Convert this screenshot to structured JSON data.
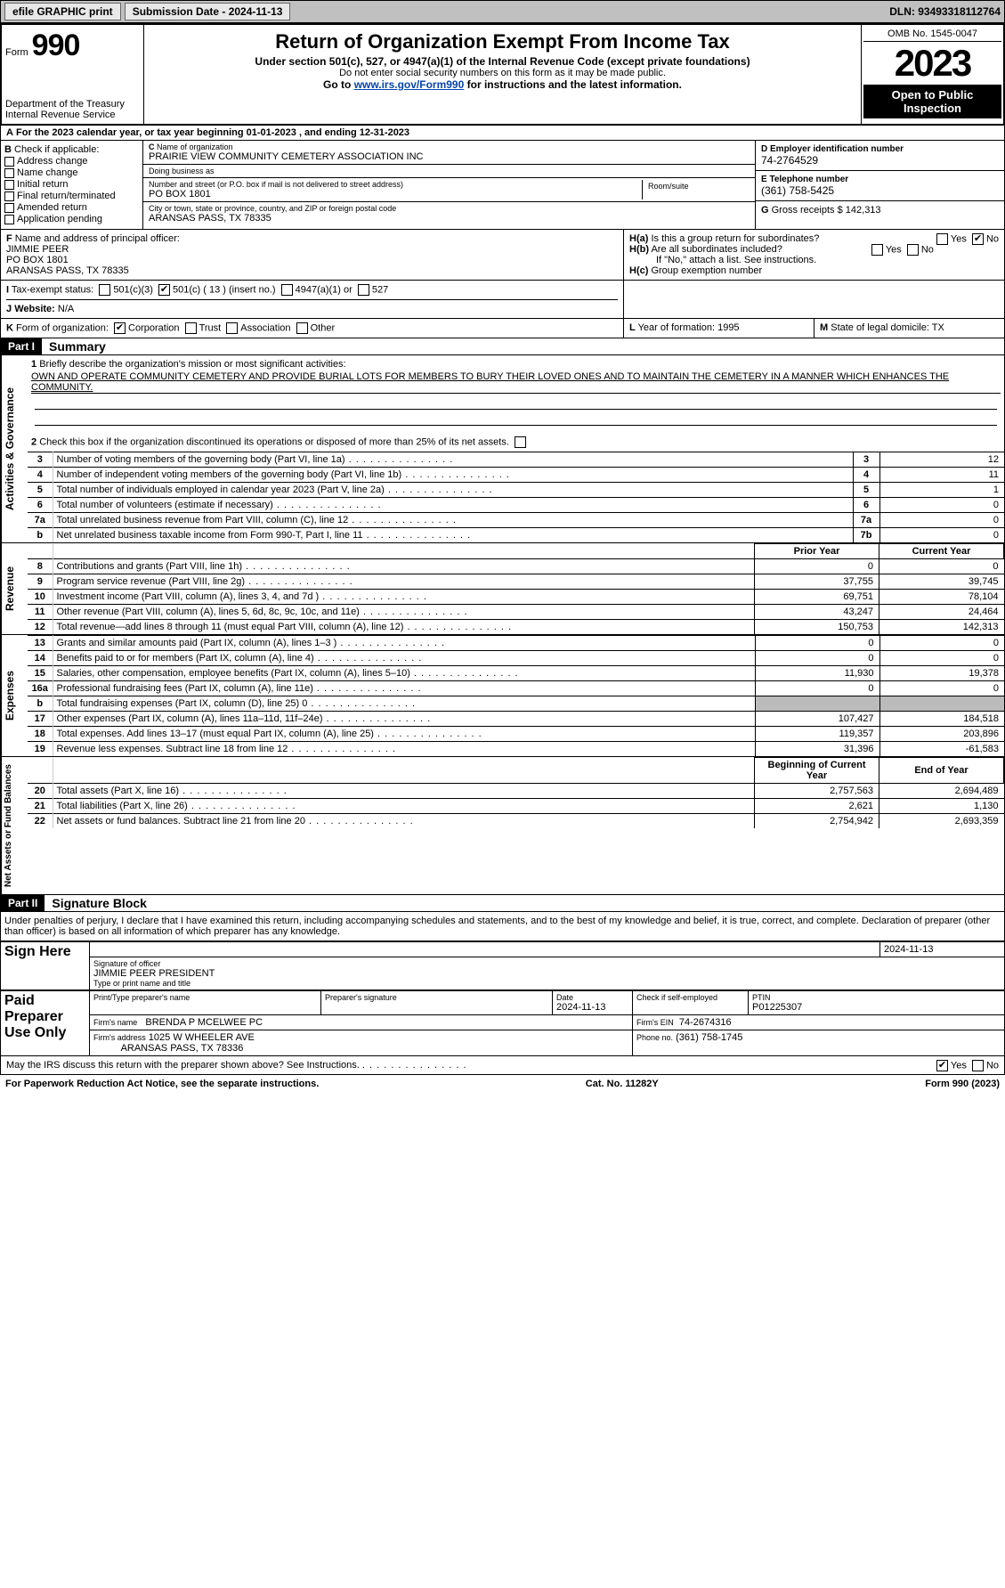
{
  "topbar": {
    "efile": "efile GRAPHIC print",
    "sub_date": "Submission Date - 2024-11-13",
    "dln": "DLN: 93493318112764"
  },
  "header": {
    "form_label": "Form",
    "form_num": "990",
    "dept": "Department of the Treasury",
    "irs": "Internal Revenue Service",
    "title": "Return of Organization Exempt From Income Tax",
    "sub1": "Under section 501(c), 527, or 4947(a)(1) of the Internal Revenue Code (except private foundations)",
    "sub2": "Do not enter social security numbers on this form as it may be made public.",
    "sub3_pre": "Go to ",
    "sub3_link": "www.irs.gov/Form990",
    "sub3_post": " for instructions and the latest information.",
    "omb": "OMB No. 1545-0047",
    "year": "2023",
    "open": "Open to Public Inspection"
  },
  "rowA": "For the 2023 calendar year, or tax year beginning 01-01-2023   , and ending 12-31-2023",
  "B": {
    "label": "Check if applicable:",
    "items": [
      "Address change",
      "Name change",
      "Initial return",
      "Final return/terminated",
      "Amended return",
      "Application pending"
    ]
  },
  "C": {
    "name_label": "Name of organization",
    "name": "PRAIRIE VIEW COMMUNITY CEMETERY ASSOCIATION INC",
    "dba_label": "Doing business as",
    "dba": "",
    "addr_label": "Number and street (or P.O. box if mail is not delivered to street address)",
    "addr": "PO BOX 1801",
    "room_label": "Room/suite",
    "city_label": "City or town, state or province, country, and ZIP or foreign postal code",
    "city": "ARANSAS PASS, TX  78335"
  },
  "D": {
    "ein_label": "Employer identification number",
    "ein": "74-2764529",
    "phone_label": "Telephone number",
    "phone": "(361) 758-5425",
    "gross_label": "Gross receipts $",
    "gross": "142,313"
  },
  "F": {
    "label": "Name and address of principal officer:",
    "name": "JIMMIE PEER",
    "addr1": "PO BOX 1801",
    "addr2": "ARANSAS PASS, TX  78335"
  },
  "H": {
    "a": "Is this a group return for subordinates?",
    "a_no": true,
    "b": "Are all subordinates included?",
    "b_note": "If \"No,\" attach a list. See instructions.",
    "c": "Group exemption number"
  },
  "I": {
    "label": "Tax-exempt status:",
    "opt1": "501(c)(3)",
    "opt2": "501(c) ( 13 ) (insert no.)",
    "opt2_checked": true,
    "opt3": "4947(a)(1) or",
    "opt4": "527"
  },
  "J": {
    "label": "Website:",
    "val": "N/A"
  },
  "K": {
    "label": "Form of organization:",
    "corp": "Corporation",
    "corp_checked": true,
    "trust": "Trust",
    "assoc": "Association",
    "other": "Other"
  },
  "L": {
    "label": "Year of formation:",
    "val": "1995"
  },
  "M": {
    "label": "State of legal domicile:",
    "val": "TX"
  },
  "parts": {
    "p1": "Part I",
    "p1t": "Summary",
    "p2": "Part II",
    "p2t": "Signature Block"
  },
  "summary": {
    "line1_label": "Briefly describe the organization's mission or most significant activities:",
    "mission": "OWN AND OPERATE COMMUNITY CEMETERY AND PROVIDE BURIAL LOTS FOR MEMBERS TO BURY THEIR LOVED ONES AND TO MAINTAIN THE CEMETERY IN A MANNER WHICH ENHANCES THE COMMUNITY.",
    "line2": "Check this box      if the organization discontinued its operations or disposed of more than 25% of its net assets.",
    "gov": [
      {
        "n": "3",
        "t": "Number of voting members of the governing body (Part VI, line 1a)",
        "k": "3",
        "v": "12"
      },
      {
        "n": "4",
        "t": "Number of independent voting members of the governing body (Part VI, line 1b)",
        "k": "4",
        "v": "11"
      },
      {
        "n": "5",
        "t": "Total number of individuals employed in calendar year 2023 (Part V, line 2a)",
        "k": "5",
        "v": "1"
      },
      {
        "n": "6",
        "t": "Total number of volunteers (estimate if necessary)",
        "k": "6",
        "v": "0"
      },
      {
        "n": "7a",
        "t": "Total unrelated business revenue from Part VIII, column (C), line 12",
        "k": "7a",
        "v": "0"
      },
      {
        "n": "b",
        "t": "Net unrelated business taxable income from Form 990-T, Part I, line 11",
        "k": "7b",
        "v": "0"
      }
    ],
    "col_prior": "Prior Year",
    "col_curr": "Current Year",
    "revenue": [
      {
        "n": "8",
        "t": "Contributions and grants (Part VIII, line 1h)",
        "p": "0",
        "c": "0"
      },
      {
        "n": "9",
        "t": "Program service revenue (Part VIII, line 2g)",
        "p": "37,755",
        "c": "39,745"
      },
      {
        "n": "10",
        "t": "Investment income (Part VIII, column (A), lines 3, 4, and 7d )",
        "p": "69,751",
        "c": "78,104"
      },
      {
        "n": "11",
        "t": "Other revenue (Part VIII, column (A), lines 5, 6d, 8c, 9c, 10c, and 11e)",
        "p": "43,247",
        "c": "24,464"
      },
      {
        "n": "12",
        "t": "Total revenue—add lines 8 through 11 (must equal Part VIII, column (A), line 12)",
        "p": "150,753",
        "c": "142,313"
      }
    ],
    "expenses": [
      {
        "n": "13",
        "t": "Grants and similar amounts paid (Part IX, column (A), lines 1–3 )",
        "p": "0",
        "c": "0"
      },
      {
        "n": "14",
        "t": "Benefits paid to or for members (Part IX, column (A), line 4)",
        "p": "0",
        "c": "0"
      },
      {
        "n": "15",
        "t": "Salaries, other compensation, employee benefits (Part IX, column (A), lines 5–10)",
        "p": "11,930",
        "c": "19,378"
      },
      {
        "n": "16a",
        "t": "Professional fundraising fees (Part IX, column (A), line 11e)",
        "p": "0",
        "c": "0"
      },
      {
        "n": "b",
        "t": "Total fundraising expenses (Part IX, column (D), line 25) 0",
        "p": "grey",
        "c": "grey"
      },
      {
        "n": "17",
        "t": "Other expenses (Part IX, column (A), lines 11a–11d, 11f–24e)",
        "p": "107,427",
        "c": "184,518"
      },
      {
        "n": "18",
        "t": "Total expenses. Add lines 13–17 (must equal Part IX, column (A), line 25)",
        "p": "119,357",
        "c": "203,896"
      },
      {
        "n": "19",
        "t": "Revenue less expenses. Subtract line 18 from line 12",
        "p": "31,396",
        "c": "-61,583"
      }
    ],
    "col_beg": "Beginning of Current Year",
    "col_end": "End of Year",
    "netassets": [
      {
        "n": "20",
        "t": "Total assets (Part X, line 16)",
        "p": "2,757,563",
        "c": "2,694,489"
      },
      {
        "n": "21",
        "t": "Total liabilities (Part X, line 26)",
        "p": "2,621",
        "c": "1,130"
      },
      {
        "n": "22",
        "t": "Net assets or fund balances. Subtract line 21 from line 20",
        "p": "2,754,942",
        "c": "2,693,359"
      }
    ],
    "vlabels": {
      "gov": "Activities & Governance",
      "rev": "Revenue",
      "exp": "Expenses",
      "net": "Net Assets or Fund Balances"
    }
  },
  "sig": {
    "penalty": "Under penalties of perjury, I declare that I have examined this return, including accompanying schedules and statements, and to the best of my knowledge and belief, it is true, correct, and complete. Declaration of preparer (other than officer) is based on all information of which preparer has any knowledge.",
    "sign_here": "Sign Here",
    "sig_officer": "Signature of officer",
    "officer_name": "JIMMIE PEER PRESIDENT",
    "type_name": "Type or print name and title",
    "date1": "2024-11-13",
    "date_lab": "Date",
    "paid": "Paid Preparer Use Only",
    "print_name_lab": "Print/Type preparer's name",
    "prep_sig_lab": "Preparer's signature",
    "date2": "2024-11-13",
    "check_self": "Check       if self-employed",
    "ptin_lab": "PTIN",
    "ptin": "P01225307",
    "firm_name_lab": "Firm's name",
    "firm_name": "BRENDA P MCELWEE PC",
    "firm_ein_lab": "Firm's EIN",
    "firm_ein": "74-2674316",
    "firm_addr_lab": "Firm's address",
    "firm_addr1": "1025 W WHEELER AVE",
    "firm_addr2": "ARANSAS PASS, TX  78336",
    "phone_lab": "Phone no.",
    "phone": "(361) 758-1745",
    "discuss": "May the IRS discuss this return with the preparer shown above? See Instructions.",
    "yes": "Yes",
    "no": "No",
    "discuss_yes": true
  },
  "footer": {
    "pra": "For Paperwork Reduction Act Notice, see the separate instructions.",
    "cat": "Cat. No. 11282Y",
    "form": "Form 990 (2023)"
  }
}
